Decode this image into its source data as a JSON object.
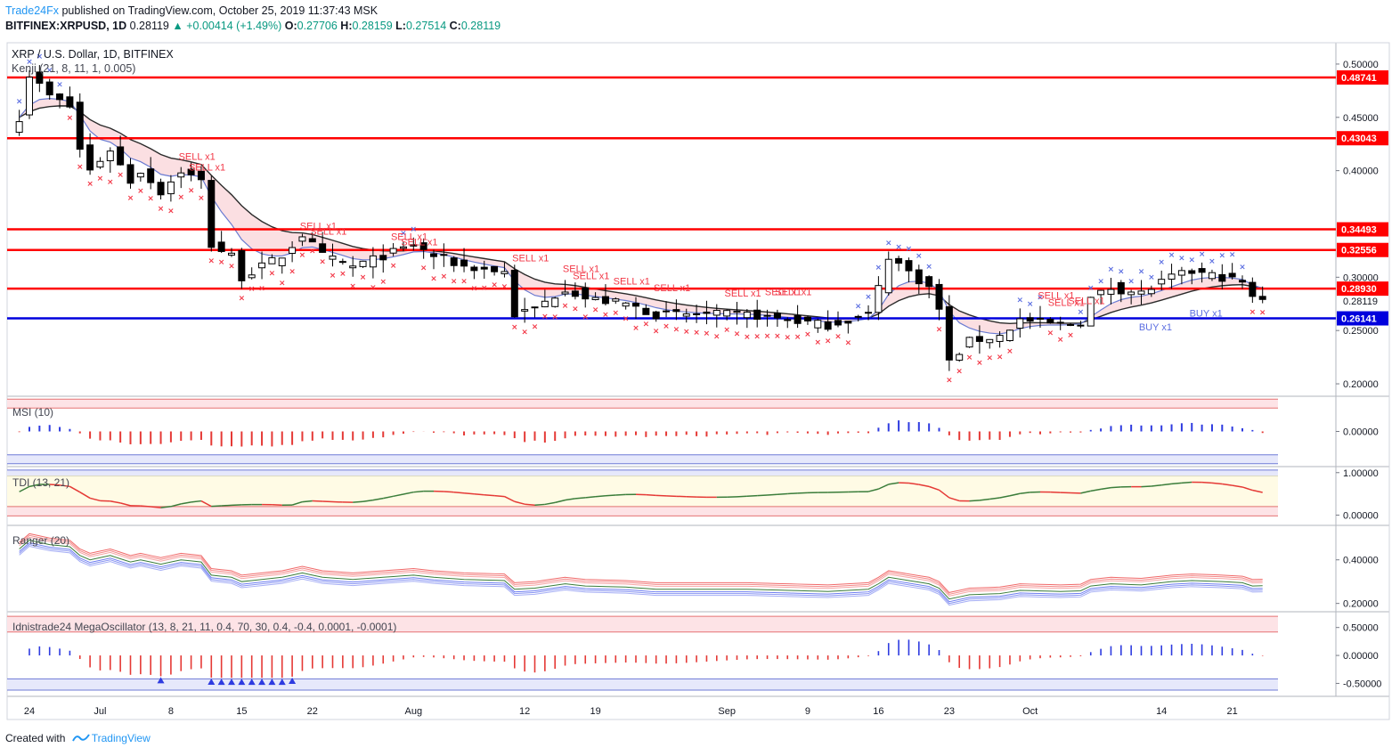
{
  "header": {
    "brand": "Trade24Fx",
    "published_text": "published on TradingView.com, October 25, 2019 11:37:43 MSK",
    "symbol": "BITFINEX:XRPUSD, 1D",
    "last": "0.28119",
    "change": "▲ +0.00414 (+1.49%)",
    "o_label": "O:",
    "o": "0.27706",
    "h_label": "H:",
    "h": "0.28159",
    "l_label": "L:",
    "l": "0.27514",
    "c_label": "C:",
    "c": "0.28119"
  },
  "footer": {
    "created_with": "Created with",
    "tradingview": "TradingView"
  },
  "panes": {
    "main": {
      "title": "XRP / U.S. Dollar, 1D, BITFINEX",
      "indicator": "Kenji (21, 8, 11, 1, 0.005)",
      "ticks": [
        "0.50000",
        "0.45000",
        "0.40000",
        "0.30000",
        "0.25000",
        "0.20000"
      ],
      "current_price": "0.28119"
    },
    "msi": {
      "title": "MSI (10)",
      "ticks": [
        "0.00000"
      ]
    },
    "tdi": {
      "title": "TDI (13, 21)",
      "ticks": [
        "1.00000",
        "0.00000"
      ]
    },
    "ranger": {
      "title": "Ranger (20)",
      "ticks": [
        "0.40000",
        "0.20000"
      ]
    },
    "mega": {
      "title": "Idnistrade24 MegaOscillator (13, 8, 21, 11, 0.4, 70, 30, 0.4, -0.4, 0.0001, -0.0001)",
      "ticks": [
        "0.50000",
        "0.00000",
        "-0.50000"
      ]
    }
  },
  "colors": {
    "bull": "#ffffff",
    "bear": "#000000",
    "red_line": "#ff0000",
    "blue_line": "#0000dd",
    "sell": "#f23645",
    "buy": "#5b6ee1",
    "upper_band": "#000000",
    "lower_band": "#2f3b8a"
  },
  "chart_data": [
    {
      "type": "candlestick",
      "title": "XRP / U.S. Dollar, 1D, BITFINEX",
      "ylim": [
        0.19,
        0.52
      ],
      "x_ticks": [
        "24",
        "Jul",
        "8",
        "15",
        "22",
        "Aug",
        "12",
        "19",
        "Sep",
        "9",
        "16",
        "23",
        "Oct",
        "14",
        "21"
      ],
      "x_tick_days": [
        -7,
        0,
        7,
        14,
        21,
        31,
        42,
        49,
        62,
        70,
        77,
        84,
        92,
        105,
        112
      ],
      "horizontal_levels": [
        {
          "value": 0.48741,
          "label": "0.48741",
          "color": "#ff0000"
        },
        {
          "value": 0.43043,
          "label": "0.43043",
          "color": "#ff0000"
        },
        {
          "value": 0.34493,
          "label": "0.34493",
          "color": "#ff0000"
        },
        {
          "value": 0.32556,
          "label": "0.32556",
          "color": "#ff0000"
        },
        {
          "value": 0.2893,
          "label": "0.28930",
          "color": "#ff0000"
        },
        {
          "value": 0.26141,
          "label": "0.26141",
          "color": "#0000dd"
        }
      ],
      "anchors": [
        [
          -8,
          0.45
        ],
        [
          -7,
          0.49
        ],
        [
          -5,
          0.47
        ],
        [
          -3,
          0.46
        ],
        [
          -2,
          0.42
        ],
        [
          -1,
          0.4
        ],
        [
          1,
          0.42
        ],
        [
          3,
          0.39
        ],
        [
          4,
          0.4
        ],
        [
          6,
          0.38
        ],
        [
          8,
          0.4
        ],
        [
          10,
          0.39
        ],
        [
          11,
          0.33
        ],
        [
          13,
          0.32
        ],
        [
          14,
          0.3
        ],
        [
          16,
          0.31
        ],
        [
          18,
          0.32
        ],
        [
          20,
          0.34
        ],
        [
          22,
          0.32
        ],
        [
          25,
          0.31
        ],
        [
          28,
          0.32
        ],
        [
          31,
          0.33
        ],
        [
          33,
          0.32
        ],
        [
          36,
          0.31
        ],
        [
          40,
          0.305
        ],
        [
          41,
          0.265
        ],
        [
          43,
          0.27
        ],
        [
          46,
          0.29
        ],
        [
          48,
          0.28
        ],
        [
          52,
          0.275
        ],
        [
          55,
          0.265
        ],
        [
          60,
          0.265
        ],
        [
          64,
          0.265
        ],
        [
          68,
          0.26
        ],
        [
          72,
          0.255
        ],
        [
          76,
          0.265
        ],
        [
          77,
          0.29
        ],
        [
          78,
          0.32
        ],
        [
          80,
          0.305
        ],
        [
          82,
          0.29
        ],
        [
          83,
          0.27
        ],
        [
          84,
          0.22
        ],
        [
          86,
          0.24
        ],
        [
          89,
          0.245
        ],
        [
          91,
          0.26
        ],
        [
          95,
          0.255
        ],
        [
          97,
          0.258
        ],
        [
          98,
          0.28
        ],
        [
          100,
          0.29
        ],
        [
          103,
          0.285
        ],
        [
          104,
          0.29
        ],
        [
          106,
          0.3
        ],
        [
          108,
          0.305
        ],
        [
          111,
          0.3
        ],
        [
          113,
          0.295
        ],
        [
          114,
          0.28
        ],
        [
          115,
          0.28119
        ]
      ],
      "signals": [
        {
          "label": "SELL x1",
          "day": 9,
          "value": 0.41
        },
        {
          "label": "SELL x1",
          "day": 10,
          "value": 0.4
        },
        {
          "label": "SELL x1",
          "day": 21,
          "value": 0.345
        },
        {
          "label": "SELL x1",
          "day": 22,
          "value": 0.34
        },
        {
          "label": "SELL x1",
          "day": 30,
          "value": 0.335
        },
        {
          "label": "SELL x1",
          "day": 31,
          "value": 0.33
        },
        {
          "label": "SELL x1",
          "day": 42,
          "value": 0.315
        },
        {
          "label": "SELL x1",
          "day": 47,
          "value": 0.305
        },
        {
          "label": "SELL x1",
          "day": 48,
          "value": 0.298
        },
        {
          "label": "SELL x1",
          "day": 52,
          "value": 0.293
        },
        {
          "label": "SELL x1",
          "day": 56,
          "value": 0.287
        },
        {
          "label": "SELL x1",
          "day": 63,
          "value": 0.282
        },
        {
          "label": "SELL x1",
          "day": 67,
          "value": 0.283
        },
        {
          "label": "SELL x1",
          "day": 68,
          "value": 0.283
        },
        {
          "label": "SELL x1",
          "day": 94,
          "value": 0.28
        },
        {
          "label": "SELL x1",
          "day": 95,
          "value": 0.273
        },
        {
          "label": "SELL x1",
          "day": 97,
          "value": 0.275
        },
        {
          "label": "BUY x1",
          "day": 104,
          "value": 0.25
        },
        {
          "label": "BUY x1",
          "day": 109,
          "value": 0.263
        }
      ]
    },
    {
      "type": "bar",
      "title": "MSI (10)",
      "ylim": [
        -0.6,
        0.6
      ]
    },
    {
      "type": "line",
      "title": "TDI (13, 21)",
      "ylim": [
        -0.2,
        1.1
      ]
    },
    {
      "type": "line",
      "title": "Ranger (20)",
      "ylim": [
        0.17,
        0.55
      ]
    },
    {
      "type": "bar",
      "title": "Idnistrade24 MegaOscillator (13, 8, 21, 11, 0.4, 70, 30, 0.4, -0.4, 0.0001, -0.0001)",
      "ylim": [
        -0.7,
        0.75
      ]
    }
  ]
}
